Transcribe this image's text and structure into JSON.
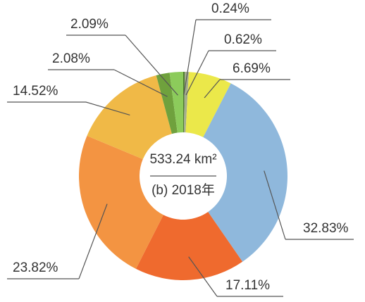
{
  "chart_data": {
    "type": "donut",
    "center_text": "533.24 km²",
    "subtitle": "(b) 2018年",
    "categories": [
      null,
      null,
      null,
      null,
      null,
      null,
      null,
      null,
      null
    ],
    "values": [
      0.24,
      0.62,
      6.69,
      32.83,
      17.11,
      23.82,
      14.52,
      2.08,
      2.09
    ],
    "value_labels": [
      "0.24%",
      "0.62%",
      "6.69%",
      "32.83%",
      "17.11%",
      "23.82%",
      "14.52%",
      "2.08%",
      "2.09%"
    ],
    "colors": [
      "#4f7a2e",
      "#a3ad8e",
      "#ebe84a",
      "#8fb8dc",
      "#ef6a2e",
      "#f39442",
      "#f0b947",
      "#6fa13d",
      "#8ccb5b"
    ]
  }
}
